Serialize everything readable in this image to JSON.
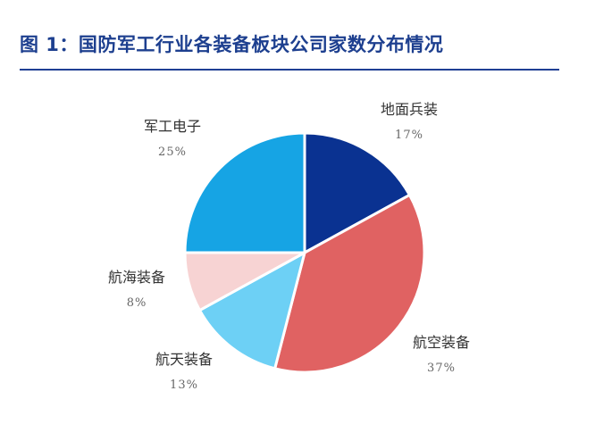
{
  "title": "图 1：国防军工行业各装备板块公司家数分布情况",
  "colors": {
    "title": "#1d3f8f",
    "rule": "#1f3f94"
  },
  "chart_data": {
    "type": "pie",
    "title": "图 1：国防军工行业各装备板块公司家数分布情况",
    "slices": [
      {
        "label": "地面兵装",
        "value": 17,
        "value_text": "17%",
        "color": "#0a3291"
      },
      {
        "label": "航空装备",
        "value": 37,
        "value_text": "37%",
        "color": "#e06262"
      },
      {
        "label": "航天装备",
        "value": 13,
        "value_text": "13%",
        "color": "#6dd0f5"
      },
      {
        "label": "航海装备",
        "value": 8,
        "value_text": "8%",
        "color": "#f7d3d3"
      },
      {
        "label": "军工电子",
        "value": 25,
        "value_text": "25%",
        "color": "#16a4e4"
      }
    ],
    "start_angle_deg": 0,
    "direction": "clockwise",
    "legend": "none"
  }
}
